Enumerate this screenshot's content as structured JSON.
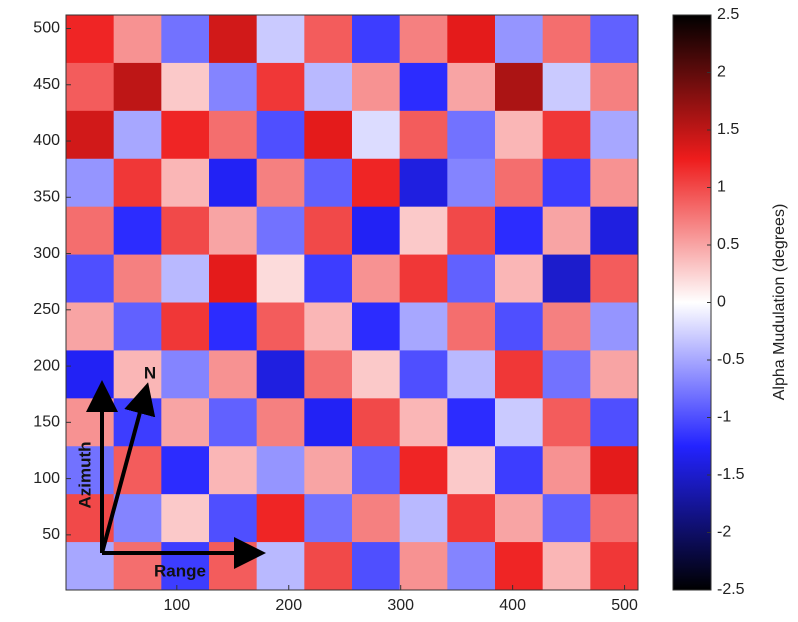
{
  "chart_data": {
    "type": "heatmap",
    "xlim": [
      1,
      512
    ],
    "ylim": [
      1,
      512
    ],
    "xticks": [
      100,
      200,
      300,
      400,
      500
    ],
    "yticks": [
      50,
      100,
      150,
      200,
      250,
      300,
      350,
      400,
      450,
      500
    ],
    "z": [
      [
        1.2,
        0.6,
        -0.8,
        1.4,
        -0.3,
        0.9,
        -1.1,
        0.7,
        1.3,
        -0.6,
        0.8,
        -0.9
      ],
      [
        0.9,
        1.5,
        0.3,
        -0.7,
        1.1,
        -0.4,
        0.6,
        -1.2,
        0.5,
        1.6,
        -0.3,
        0.7
      ],
      [
        1.4,
        -0.5,
        1.2,
        0.8,
        -1.0,
        1.3,
        -0.2,
        0.9,
        -0.8,
        0.4,
        1.1,
        -0.5
      ],
      [
        -0.6,
        1.1,
        0.4,
        -1.3,
        0.7,
        -0.9,
        1.2,
        -1.4,
        -0.7,
        0.8,
        -1.1,
        0.6
      ],
      [
        0.8,
        -1.2,
        1.0,
        0.5,
        -0.8,
        1.0,
        -1.3,
        0.3,
        1.0,
        -1.2,
        0.5,
        -1.4
      ],
      [
        -1.0,
        0.7,
        -0.4,
        1.3,
        0.2,
        -1.1,
        0.6,
        1.1,
        -0.9,
        0.4,
        -1.5,
        0.9
      ],
      [
        0.5,
        -0.9,
        1.1,
        -1.2,
        0.9,
        0.4,
        -1.2,
        -0.5,
        0.8,
        -1.0,
        0.7,
        -0.6
      ],
      [
        -1.3,
        0.4,
        -0.7,
        0.6,
        -1.4,
        0.8,
        0.3,
        -1.0,
        -0.4,
        1.1,
        -0.8,
        0.5
      ],
      [
        0.6,
        -1.1,
        0.5,
        -0.9,
        0.7,
        -1.3,
        1.0,
        0.4,
        -1.2,
        -0.3,
        0.9,
        -1.0
      ],
      [
        -0.8,
        0.9,
        -1.2,
        0.4,
        -0.6,
        0.5,
        -0.9,
        1.2,
        0.3,
        -1.1,
        0.6,
        1.3
      ],
      [
        1.0,
        -0.7,
        0.3,
        -1.0,
        1.2,
        -0.8,
        0.7,
        -0.4,
        1.1,
        0.5,
        -0.9,
        0.8
      ],
      [
        -0.5,
        0.8,
        -1.1,
        0.9,
        -0.4,
        1.0,
        -1.0,
        0.6,
        -0.7,
        1.2,
        0.4,
        1.1
      ]
    ],
    "colorscale": [
      "#000000",
      "#2323ff",
      "#ffffff",
      "#ee1c1c",
      "#000000"
    ],
    "clim": [
      -2.5,
      2.5
    ],
    "cticks": [
      -2.5,
      -2,
      -1.5,
      -1,
      -0.5,
      0,
      0.5,
      1,
      1.5,
      2,
      2.5
    ],
    "colorbar_label": "Alpha Mudulation  (degrees)",
    "annotations": [
      "Azimuth",
      "N",
      "Range"
    ]
  }
}
